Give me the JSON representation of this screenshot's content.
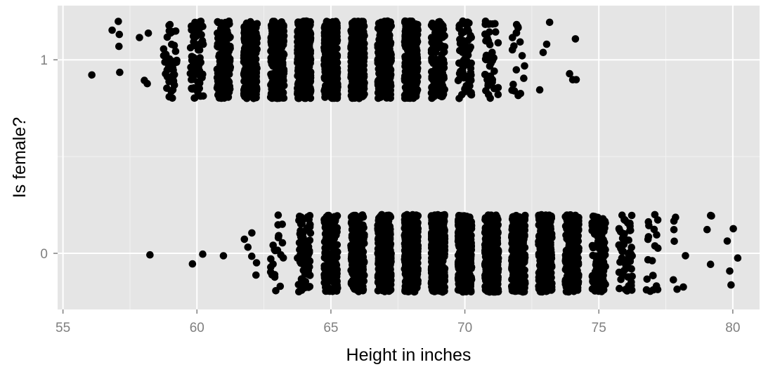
{
  "chart_data": {
    "type": "scatter",
    "title": "",
    "xlabel": "Height in inches",
    "ylabel": "Is female?",
    "xlim": [
      54.8,
      81.0
    ],
    "ylim": [
      -0.29,
      1.28
    ],
    "x_ticks": [
      55,
      60,
      65,
      70,
      75,
      80
    ],
    "x_tick_labels": [
      "55",
      "60",
      "65",
      "70",
      "75",
      "80"
    ],
    "y_ticks": [
      0,
      1
    ],
    "y_tick_labels": [
      "0",
      "1"
    ],
    "grid": true,
    "jitter": {
      "x": 0.25,
      "y": 0.2
    },
    "series": [
      {
        "group": 1,
        "heights": [
          56,
          57,
          58,
          59,
          60,
          61,
          62,
          63,
          64,
          65,
          66,
          67,
          68,
          69,
          70,
          71,
          72,
          73,
          74
        ],
        "counts": [
          1,
          5,
          4,
          40,
          80,
          150,
          250,
          300,
          400,
          400,
          380,
          300,
          220,
          140,
          70,
          40,
          18,
          4,
          4
        ]
      },
      {
        "group": 0,
        "heights": [
          58,
          60,
          61,
          62,
          63,
          64,
          65,
          66,
          67,
          68,
          69,
          70,
          71,
          72,
          73,
          74,
          75,
          76,
          77,
          78,
          79,
          80
        ],
        "counts": [
          1,
          2,
          1,
          6,
          22,
          80,
          150,
          250,
          350,
          400,
          450,
          450,
          420,
          380,
          320,
          230,
          140,
          60,
          20,
          8,
          4,
          5
        ]
      }
    ],
    "colors": {
      "panel": "#e5e5e5",
      "grid_major": "#ffffff",
      "grid_minor": "#f2f2f2",
      "point": "#000000",
      "tick_label": "#7f7f7f"
    }
  }
}
